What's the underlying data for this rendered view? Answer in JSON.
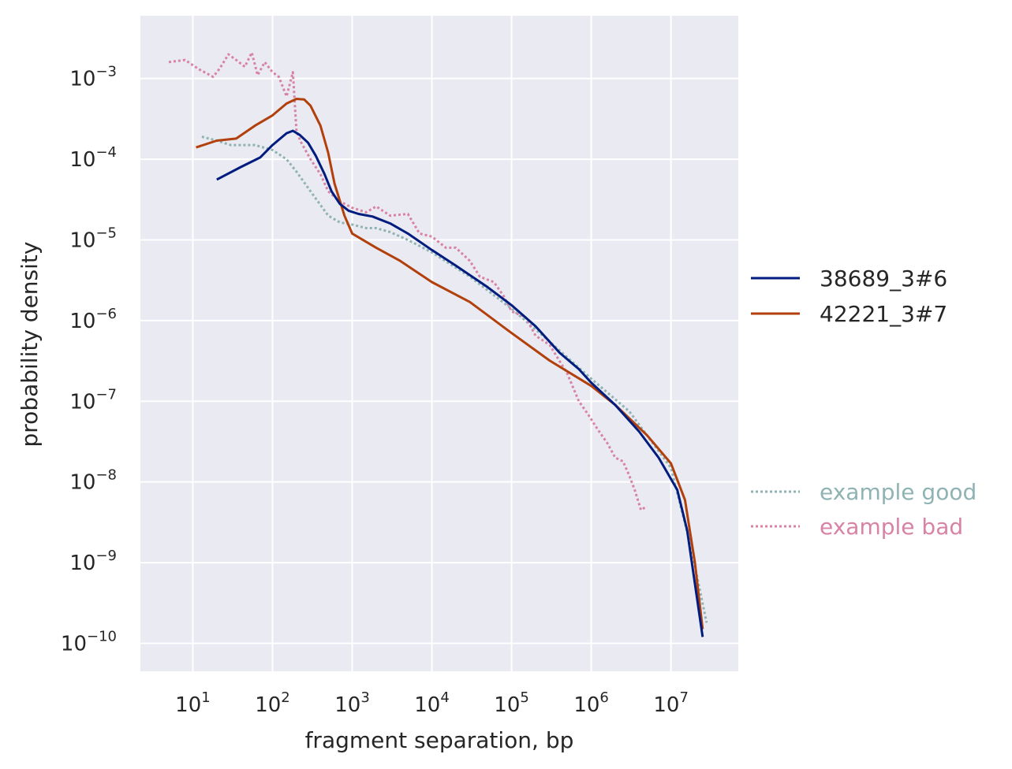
{
  "chart_data": {
    "type": "line",
    "xlabel": "fragment separation, bp",
    "ylabel": "probability density",
    "x_scale": "log",
    "y_scale": "log",
    "xlim": [
      2.2,
      70000000
    ],
    "ylim": [
      4.5e-11,
      0.006
    ],
    "grid": true,
    "legend_position": "right",
    "x_ticks": [
      {
        "base": "10",
        "exp": "1",
        "value": 10
      },
      {
        "base": "10",
        "exp": "2",
        "value": 100
      },
      {
        "base": "10",
        "exp": "3",
        "value": 1000
      },
      {
        "base": "10",
        "exp": "4",
        "value": 10000
      },
      {
        "base": "10",
        "exp": "5",
        "value": 100000
      },
      {
        "base": "10",
        "exp": "6",
        "value": 1000000
      },
      {
        "base": "10",
        "exp": "7",
        "value": 10000000
      }
    ],
    "y_ticks": [
      {
        "base": "10",
        "exp": "−3",
        "value": 0.001
      },
      {
        "base": "10",
        "exp": "−4",
        "value": 0.0001
      },
      {
        "base": "10",
        "exp": "−5",
        "value": 1e-05
      },
      {
        "base": "10",
        "exp": "−6",
        "value": 1e-06
      },
      {
        "base": "10",
        "exp": "−7",
        "value": 1e-07
      },
      {
        "base": "10",
        "exp": "−8",
        "value": 1e-08
      },
      {
        "base": "10",
        "exp": "−9",
        "value": 1e-09
      },
      {
        "base": "10",
        "exp": "−10",
        "value": 1e-10
      }
    ],
    "series": [
      {
        "name": "38689_3#6",
        "color": "#001c7f",
        "style": "solid",
        "points": [
          [
            20,
            5.6e-05
          ],
          [
            40,
            8e-05
          ],
          [
            70,
            0.000105
          ],
          [
            100,
            0.00015
          ],
          [
            150,
            0.00021
          ],
          [
            180,
            0.000225
          ],
          [
            220,
            0.0002
          ],
          [
            280,
            0.00016
          ],
          [
            350,
            0.00011
          ],
          [
            450,
            6.5e-05
          ],
          [
            550,
            4e-05
          ],
          [
            700,
            2.8e-05
          ],
          [
            900,
            2.3e-05
          ],
          [
            1200,
            2.1e-05
          ],
          [
            1800,
            1.95e-05
          ],
          [
            3000,
            1.6e-05
          ],
          [
            5000,
            1.2e-05
          ],
          [
            10000,
            7.5e-06
          ],
          [
            20000,
            4.8e-06
          ],
          [
            50000,
            2.6e-06
          ],
          [
            100000,
            1.55e-06
          ],
          [
            200000,
            8.5e-07
          ],
          [
            400000,
            4e-07
          ],
          [
            700000,
            2.5e-07
          ],
          [
            1000000,
            1.7e-07
          ],
          [
            2000000,
            9e-08
          ],
          [
            4000000,
            4.2e-08
          ],
          [
            7000000,
            2e-08
          ],
          [
            12000000,
            8e-09
          ],
          [
            16000000,
            2.5e-09
          ],
          [
            25000000,
            1.2e-10
          ]
        ]
      },
      {
        "name": "42221_3#7",
        "color": "#b1400d",
        "style": "solid",
        "points": [
          [
            11,
            0.00014
          ],
          [
            20,
            0.00017
          ],
          [
            35,
            0.00018
          ],
          [
            60,
            0.00026
          ],
          [
            100,
            0.00035
          ],
          [
            150,
            0.00049
          ],
          [
            200,
            0.00056
          ],
          [
            250,
            0.00055
          ],
          [
            300,
            0.00046
          ],
          [
            400,
            0.00026
          ],
          [
            500,
            0.00012
          ],
          [
            600,
            5e-05
          ],
          [
            800,
            2e-05
          ],
          [
            1000,
            1.2e-05
          ],
          [
            2000,
            8e-06
          ],
          [
            4000,
            5.5e-06
          ],
          [
            10000,
            3e-06
          ],
          [
            30000,
            1.7e-06
          ],
          [
            100000,
            7e-07
          ],
          [
            300000,
            3.2e-07
          ],
          [
            1000000,
            1.55e-07
          ],
          [
            2000000,
            9e-08
          ],
          [
            5000000,
            3.8e-08
          ],
          [
            10000000,
            1.7e-08
          ],
          [
            15000000,
            6e-09
          ],
          [
            20000000,
            1e-09
          ],
          [
            25000000,
            1.5e-10
          ]
        ]
      },
      {
        "name": "example good",
        "color": "#8fb3b3",
        "style": "dotted",
        "points": [
          [
            13,
            0.00019
          ],
          [
            20,
            0.00017
          ],
          [
            30,
            0.00015
          ],
          [
            60,
            0.00015
          ],
          [
            100,
            0.00013
          ],
          [
            150,
            0.0001
          ],
          [
            200,
            7e-05
          ],
          [
            300,
            4e-05
          ],
          [
            500,
            2e-05
          ],
          [
            700,
            1.65e-05
          ],
          [
            1000,
            1.55e-05
          ],
          [
            1500,
            1.4e-05
          ],
          [
            2000,
            1.4e-05
          ],
          [
            3000,
            1.25e-05
          ],
          [
            5000,
            1e-05
          ],
          [
            10000,
            7e-06
          ],
          [
            30000,
            3.5e-06
          ],
          [
            100000,
            1.4e-06
          ],
          [
            300000,
            5.5e-07
          ],
          [
            1000000,
            1.9e-07
          ],
          [
            3000000,
            7.5e-08
          ],
          [
            10000000,
            1.5e-08
          ],
          [
            18000000,
            1.5e-09
          ],
          [
            28000000,
            1.8e-10
          ]
        ]
      },
      {
        "name": "example bad",
        "color": "#d883a5",
        "style": "dotted",
        "points": [
          [
            5,
            0.0016
          ],
          [
            8,
            0.0017
          ],
          [
            12,
            0.0013
          ],
          [
            18,
            0.00105
          ],
          [
            22,
            0.00135
          ],
          [
            28,
            0.002
          ],
          [
            35,
            0.0017
          ],
          [
            45,
            0.0014
          ],
          [
            55,
            0.0021
          ],
          [
            65,
            0.0011
          ],
          [
            80,
            0.0016
          ],
          [
            100,
            0.0012
          ],
          [
            120,
            0.00105
          ],
          [
            150,
            0.0006
          ],
          [
            180,
            0.0012
          ],
          [
            200,
            0.00022
          ],
          [
            230,
            0.00016
          ],
          [
            300,
            0.0001
          ],
          [
            400,
            6.5e-05
          ],
          [
            500,
            4e-05
          ],
          [
            700,
            3e-05
          ],
          [
            1000,
            2.5e-05
          ],
          [
            1500,
            2.2e-05
          ],
          [
            2000,
            2.6e-05
          ],
          [
            3000,
            2e-05
          ],
          [
            5000,
            2.1e-05
          ],
          [
            7000,
            1.2e-05
          ],
          [
            10000,
            1.1e-05
          ],
          [
            15000,
            8e-06
          ],
          [
            20000,
            8e-06
          ],
          [
            30000,
            5.5e-06
          ],
          [
            40000,
            3.5e-06
          ],
          [
            60000,
            3e-06
          ],
          [
            80000,
            2e-06
          ],
          [
            100000,
            1.3e-06
          ],
          [
            150000,
            1.1e-06
          ],
          [
            200000,
            6.5e-07
          ],
          [
            300000,
            5e-07
          ],
          [
            500000,
            2.2e-07
          ],
          [
            700000,
            1e-07
          ],
          [
            900000,
            7e-08
          ],
          [
            1200000,
            4.5e-08
          ],
          [
            1600000,
            3e-08
          ],
          [
            2000000,
            2e-08
          ],
          [
            2500000,
            1.8e-08
          ],
          [
            3000000,
            1.2e-08
          ],
          [
            3500000,
            8e-09
          ],
          [
            4200000,
            4.5e-09
          ],
          [
            5000000,
            5e-09
          ]
        ]
      }
    ]
  }
}
